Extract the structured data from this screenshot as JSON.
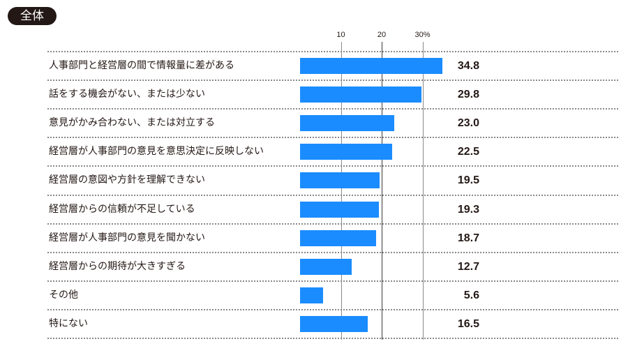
{
  "badge": {
    "label": "全体"
  },
  "axis": {
    "ticks": [
      {
        "value": 10,
        "label": "10"
      },
      {
        "value": 20,
        "label": "20"
      },
      {
        "value": 30,
        "label": "30%"
      }
    ]
  },
  "colors": {
    "bar": "#1a8cff",
    "text": "#231815",
    "badge_bg": "#231815"
  },
  "rows": [
    {
      "label": "人事部門と経営層の間で情報量に差がある",
      "value": "34.8"
    },
    {
      "label": "話をする機会がない、または少ない",
      "value": "29.8"
    },
    {
      "label": "意見がかみ合わない、または対立する",
      "value": "23.0"
    },
    {
      "label": "経営層が人事部門の意見を意思決定に反映しない",
      "value": "22.5"
    },
    {
      "label": "経営層の意図や方針を理解できない",
      "value": "19.5"
    },
    {
      "label": "経営層からの信頼が不足している",
      "value": "19.3"
    },
    {
      "label": "経営層が人事部門の意見を聞かない",
      "value": "18.7"
    },
    {
      "label": "経営層からの期待が大きすぎる",
      "value": "12.7"
    },
    {
      "label": "その他",
      "value": "5.6"
    },
    {
      "label": "特にない",
      "value": "16.5"
    }
  ],
  "chart_data": {
    "type": "bar",
    "orientation": "horizontal",
    "title": "全体",
    "categories": [
      "人事部門と経営層の間で情報量に差がある",
      "話をする機会がない、または少ない",
      "意見がかみ合わない、または対立する",
      "経営層が人事部門の意見を意思決定に反映しない",
      "経営層の意図や方針を理解できない",
      "経営層からの信頼が不足している",
      "経営層が人事部門の意見を聞かない",
      "経営層からの期待が大きすぎる",
      "その他",
      "特にない"
    ],
    "values": [
      34.8,
      29.8,
      23.0,
      22.5,
      19.5,
      19.3,
      18.7,
      12.7,
      5.6,
      16.5
    ],
    "xlabel": "%",
    "ylabel": "",
    "xticks": [
      10,
      20,
      30
    ],
    "xlim": [
      0,
      35
    ],
    "grid": true,
    "data_labels": true
  }
}
